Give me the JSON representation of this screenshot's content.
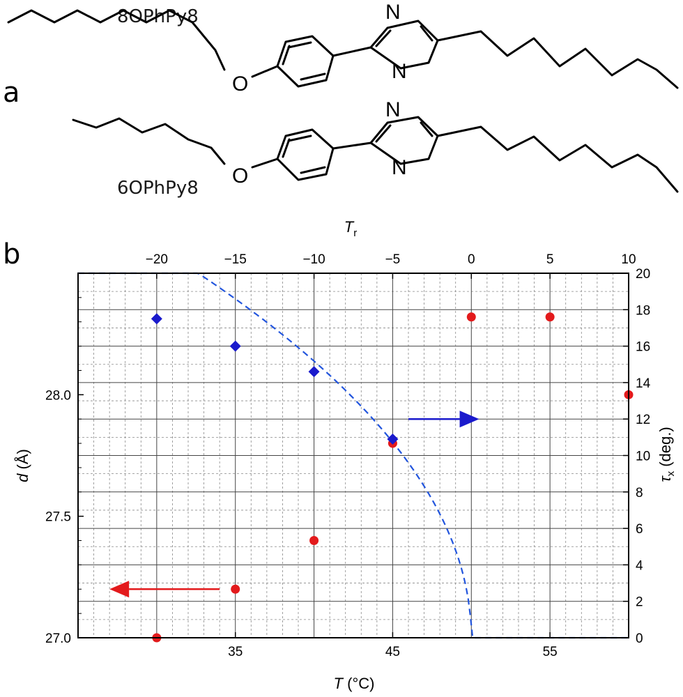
{
  "panel_a": {
    "label": "a",
    "molecules": [
      {
        "name": "8OPhPy8"
      },
      {
        "name": "6OPhPy8"
      }
    ],
    "atoms": {
      "oxygen": "O",
      "nitrogen": "N"
    }
  },
  "panel_b": {
    "label": "b"
  },
  "chart_data": {
    "type": "scatter",
    "xlabel": "T (°C)",
    "x_top_label": "Tr",
    "ylabel_left": "d (Å)",
    "ylabel_right": "τx (deg.)",
    "xlim": [
      25,
      60
    ],
    "top_xlim": [
      -25,
      10
    ],
    "ylim_left": [
      27.0,
      28.5
    ],
    "ylim_right": [
      0,
      20
    ],
    "x_ticks": [
      "35",
      "45",
      "55"
    ],
    "x_tick_values": [
      35,
      45,
      55
    ],
    "top_ticks": [
      "−20",
      "−15",
      "−10",
      "−5",
      "0",
      "5",
      "10"
    ],
    "top_tick_values": [
      -20,
      -15,
      -10,
      -5,
      0,
      5,
      10
    ],
    "left_ticks": [
      "27.0",
      "27.5",
      "28.0"
    ],
    "left_tick_values": [
      27.0,
      27.5,
      28.0
    ],
    "right_ticks": [
      "0",
      "2",
      "4",
      "6",
      "8",
      "10",
      "12",
      "14",
      "16",
      "18",
      "20"
    ],
    "right_tick_values": [
      0,
      2,
      4,
      6,
      8,
      10,
      12,
      14,
      16,
      18,
      20
    ],
    "grid": true,
    "series": [
      {
        "axis": "left",
        "marker": "circle",
        "color": "#e31a1c",
        "points": [
          {
            "x": 30,
            "y": 27.0
          },
          {
            "x": 35,
            "y": 27.2
          },
          {
            "x": 40,
            "y": 27.4
          },
          {
            "x": 45,
            "y": 27.8
          },
          {
            "x": 50,
            "y": 28.32
          },
          {
            "x": 55,
            "y": 28.32
          },
          {
            "x": 60,
            "y": 28.0
          }
        ]
      },
      {
        "axis": "right",
        "marker": "diamond",
        "color": "#1a1acc",
        "points": [
          {
            "x": 30,
            "y": 17.5
          },
          {
            "x": 35,
            "y": 16.0
          },
          {
            "x": 40,
            "y": 14.6
          },
          {
            "x": 45,
            "y": 10.9
          }
        ]
      }
    ],
    "fit_curve": {
      "axis": "right",
      "style": "dashed",
      "color": "#2255dd",
      "Tc": 50,
      "amplitude": 4.8,
      "exponent": 0.5,
      "x_start": 25
    },
    "arrows": [
      {
        "color": "#1a1acc",
        "points_to": "right",
        "x_from": 46.0,
        "x_to": 50.5,
        "y_right": 12.0
      },
      {
        "color": "#e31a1c",
        "points_to": "left",
        "x_from": 34.0,
        "x_to": 27.0,
        "y_left": 27.2
      }
    ]
  }
}
